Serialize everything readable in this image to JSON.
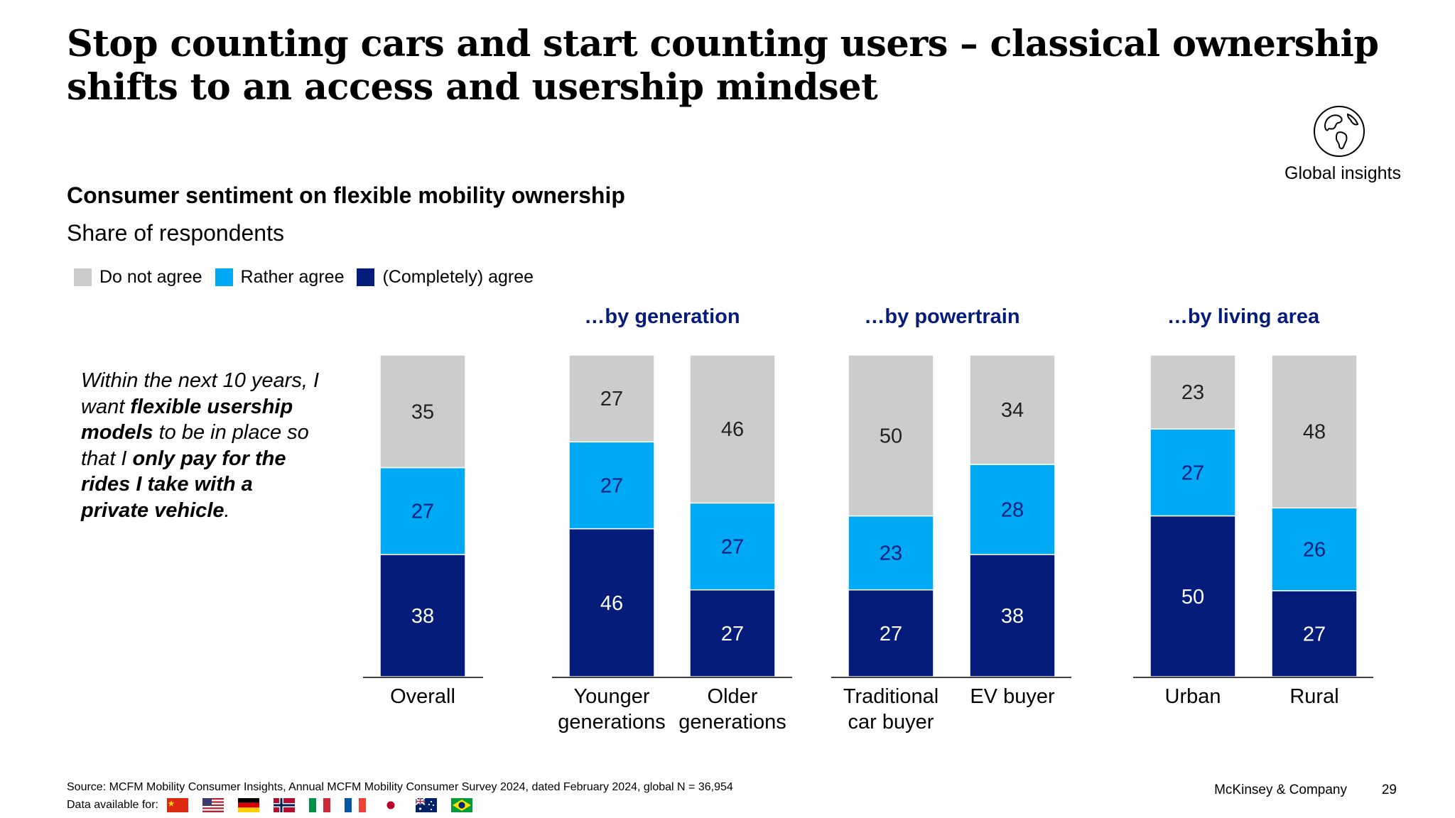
{
  "header": {
    "title": "Stop counting cars and start counting users – classical ownership shifts to an access and usership mindset",
    "badge_label": "Global insights",
    "badge_icon": "globe-icon"
  },
  "statement": {
    "t1": "Within the next 10 years, I want ",
    "t2": "flexible usership models",
    "t3": " to be in place so that I ",
    "t4": "only pay for the rides I take with a private vehicle",
    "t5": "."
  },
  "footer": {
    "source": "Source: MCFM Mobility Consumer Insights, Annual MCFM Mobility Consumer Survey 2024, dated February 2024, global N = 36,954",
    "data_available": "Data available for:",
    "flags": [
      "china-flag-icon",
      "usa-flag-icon",
      "germany-flag-icon",
      "norway-flag-icon",
      "italy-flag-icon",
      "france-flag-icon",
      "japan-flag-icon",
      "australia-flag-icon",
      "brazil-flag-icon"
    ],
    "brand": "McKinsey & Company",
    "page": "29"
  },
  "chart_data": {
    "type": "bar",
    "stacked": true,
    "title": "Consumer sentiment on flexible mobility ownership",
    "subtitle": "Share of respondents",
    "legend_placement": "top-left",
    "legend": [
      {
        "name": "Do not agree",
        "color": "#cccccc"
      },
      {
        "name": "Rather agree",
        "color": "#00a9f4"
      },
      {
        "name": "(Completely) agree",
        "color": "#051c7a"
      }
    ],
    "group_label_color": "#051c7a",
    "groups": [
      {
        "label": "",
        "categories": [
          "Overall"
        ]
      },
      {
        "label": "…by generation",
        "categories": [
          "Younger generations",
          "Older generations"
        ]
      },
      {
        "label": "…by powertrain",
        "categories": [
          "Traditional car buyer",
          "EV buyer"
        ]
      },
      {
        "label": "…by living area",
        "categories": [
          "Urban",
          "Rural"
        ]
      }
    ],
    "categories": [
      {
        "label_lines": [
          "Overall"
        ],
        "do_not_agree": 35,
        "rather_agree": 27,
        "completely_agree": 38
      },
      {
        "label_lines": [
          "Younger",
          "generations"
        ],
        "do_not_agree": 27,
        "rather_agree": 27,
        "completely_agree": 46
      },
      {
        "label_lines": [
          "Older",
          "generations"
        ],
        "do_not_agree": 46,
        "rather_agree": 27,
        "completely_agree": 27
      },
      {
        "label_lines": [
          "Traditional",
          "car buyer"
        ],
        "do_not_agree": 50,
        "rather_agree": 23,
        "completely_agree": 27
      },
      {
        "label_lines": [
          "EV buyer"
        ],
        "do_not_agree": 34,
        "rather_agree": 28,
        "completely_agree": 38
      },
      {
        "label_lines": [
          "Urban"
        ],
        "do_not_agree": 23,
        "rather_agree": 27,
        "completely_agree": 50
      },
      {
        "label_lines": [
          "Rural"
        ],
        "do_not_agree": 48,
        "rather_agree": 26,
        "completely_agree": 27
      }
    ]
  }
}
